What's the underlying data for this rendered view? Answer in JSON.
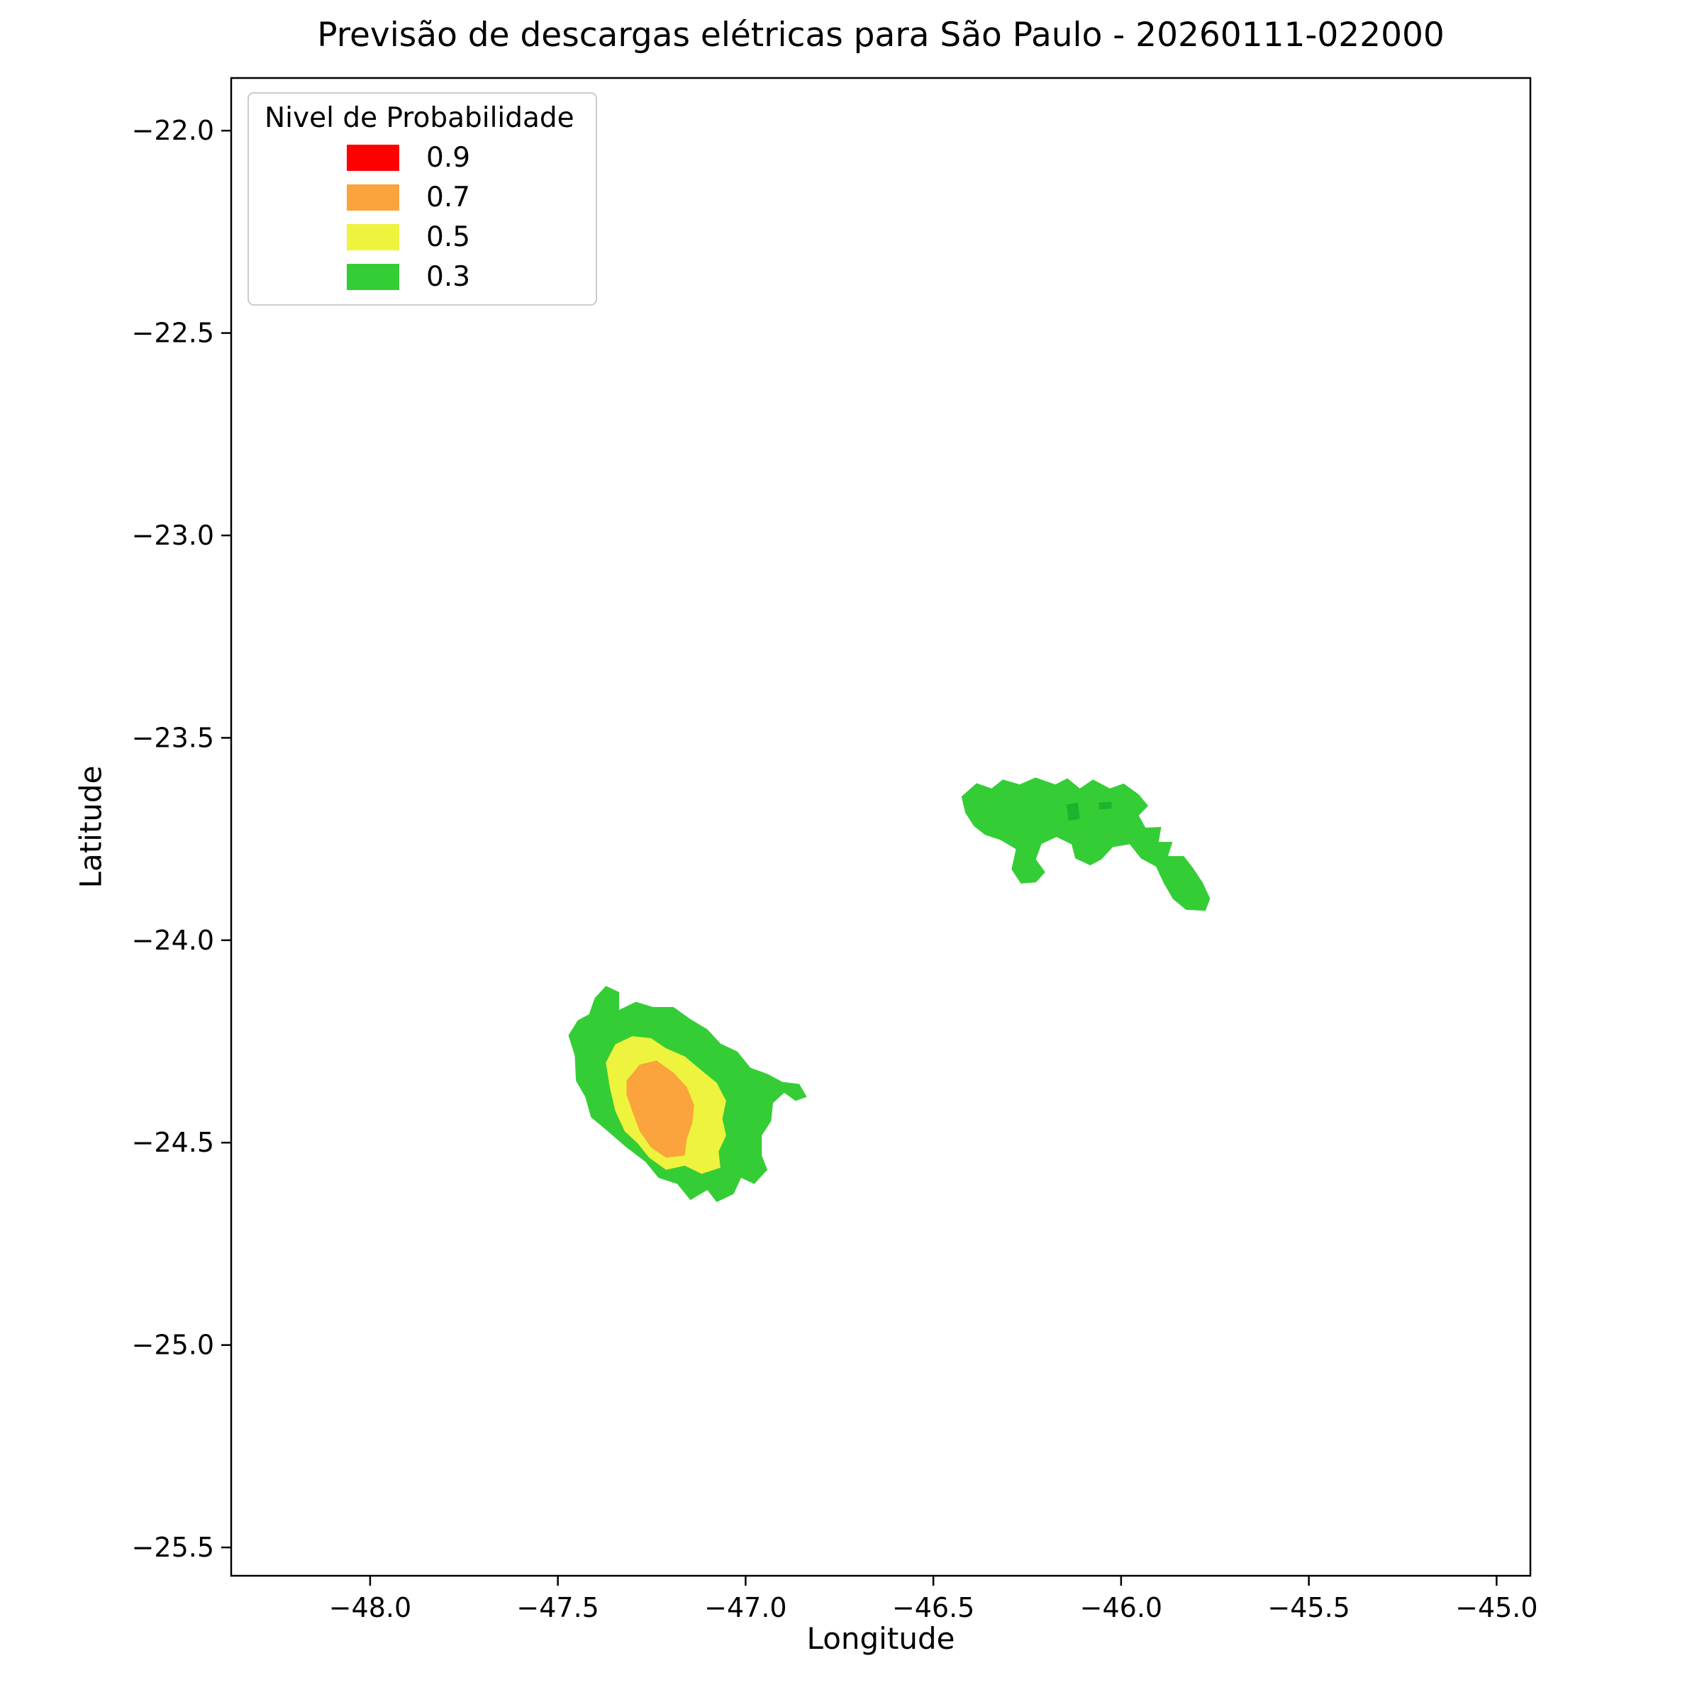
{
  "chart_data": {
    "type": "contour-map",
    "title": "Previsão de descargas elétricas para São Paulo - 20260111-022000",
    "xlabel": "Longitude",
    "ylabel": "Latitude",
    "xlim": [
      -48.37,
      -44.91
    ],
    "ylim": [
      -25.57,
      -21.87
    ],
    "x_ticks": [
      -48.0,
      -47.5,
      -47.0,
      -46.5,
      -46.0,
      -45.5,
      -45.0
    ],
    "y_ticks": [
      -22.0,
      -22.5,
      -23.0,
      -23.5,
      -24.0,
      -24.5,
      -25.0,
      -25.5
    ],
    "grid": false,
    "legend": {
      "title": "Nivel de Probabilidade",
      "position": "upper-left",
      "entries": [
        {
          "label": "0.9",
          "color": "#fe0000"
        },
        {
          "label": "0.7",
          "color": "#fba33c"
        },
        {
          "label": "0.5",
          "color": "#eef33e"
        },
        {
          "label": "0.3",
          "color": "#35cd35"
        }
      ]
    },
    "regions": [
      {
        "name": "green-northeast",
        "level": 0.3,
        "color": "#35cd35",
        "points": [
          [
            -46.415,
            -23.685
          ],
          [
            -46.425,
            -23.645
          ],
          [
            -46.385,
            -23.612
          ],
          [
            -46.345,
            -23.625
          ],
          [
            -46.315,
            -23.603
          ],
          [
            -46.27,
            -23.615
          ],
          [
            -46.228,
            -23.598
          ],
          [
            -46.175,
            -23.615
          ],
          [
            -46.143,
            -23.6
          ],
          [
            -46.11,
            -23.625
          ],
          [
            -46.075,
            -23.603
          ],
          [
            -46.03,
            -23.625
          ],
          [
            -45.993,
            -23.613
          ],
          [
            -45.953,
            -23.64
          ],
          [
            -45.928,
            -23.668
          ],
          [
            -45.953,
            -23.692
          ],
          [
            -45.935,
            -23.722
          ],
          [
            -45.893,
            -23.72
          ],
          [
            -45.9,
            -23.757
          ],
          [
            -45.863,
            -23.757
          ],
          [
            -45.875,
            -23.792
          ],
          [
            -45.833,
            -23.792
          ],
          [
            -45.808,
            -23.822
          ],
          [
            -45.783,
            -23.857
          ],
          [
            -45.763,
            -23.897
          ],
          [
            -45.775,
            -23.927
          ],
          [
            -45.827,
            -23.925
          ],
          [
            -45.862,
            -23.898
          ],
          [
            -45.887,
            -23.858
          ],
          [
            -45.907,
            -23.818
          ],
          [
            -45.947,
            -23.798
          ],
          [
            -45.977,
            -23.763
          ],
          [
            -46.022,
            -23.77
          ],
          [
            -46.052,
            -23.8
          ],
          [
            -46.082,
            -23.815
          ],
          [
            -46.122,
            -23.798
          ],
          [
            -46.132,
            -23.763
          ],
          [
            -46.172,
            -23.745
          ],
          [
            -46.212,
            -23.762
          ],
          [
            -46.227,
            -23.8
          ],
          [
            -46.202,
            -23.832
          ],
          [
            -46.227,
            -23.857
          ],
          [
            -46.267,
            -23.86
          ],
          [
            -46.292,
            -23.825
          ],
          [
            -46.28,
            -23.775
          ],
          [
            -46.322,
            -23.752
          ],
          [
            -46.362,
            -23.74
          ],
          [
            -46.392,
            -23.718
          ]
        ]
      },
      {
        "name": "green-speck-1",
        "level": 0.3,
        "color": "#1db32d",
        "points": [
          [
            -46.145,
            -23.665
          ],
          [
            -46.115,
            -23.66
          ],
          [
            -46.11,
            -23.7
          ],
          [
            -46.14,
            -23.705
          ]
        ]
      },
      {
        "name": "green-speck-2",
        "level": 0.3,
        "color": "#1db32d",
        "points": [
          [
            -46.06,
            -23.66
          ],
          [
            -46.025,
            -23.658
          ],
          [
            -46.025,
            -23.675
          ],
          [
            -46.058,
            -23.677
          ]
        ]
      },
      {
        "name": "green-southwest",
        "level": 0.3,
        "color": "#35cd35",
        "points": [
          [
            -47.455,
            -24.285
          ],
          [
            -47.472,
            -24.235
          ],
          [
            -47.447,
            -24.198
          ],
          [
            -47.417,
            -24.183
          ],
          [
            -47.402,
            -24.143
          ],
          [
            -47.372,
            -24.113
          ],
          [
            -47.337,
            -24.128
          ],
          [
            -47.337,
            -24.172
          ],
          [
            -47.292,
            -24.152
          ],
          [
            -47.247,
            -24.165
          ],
          [
            -47.192,
            -24.165
          ],
          [
            -47.147,
            -24.195
          ],
          [
            -47.102,
            -24.22
          ],
          [
            -47.067,
            -24.255
          ],
          [
            -47.022,
            -24.275
          ],
          [
            -46.987,
            -24.315
          ],
          [
            -46.942,
            -24.33
          ],
          [
            -46.902,
            -24.35
          ],
          [
            -46.857,
            -24.355
          ],
          [
            -46.837,
            -24.387
          ],
          [
            -46.867,
            -24.397
          ],
          [
            -46.897,
            -24.377
          ],
          [
            -46.927,
            -24.402
          ],
          [
            -46.932,
            -24.447
          ],
          [
            -46.957,
            -24.482
          ],
          [
            -46.957,
            -24.532
          ],
          [
            -46.942,
            -24.567
          ],
          [
            -46.977,
            -24.602
          ],
          [
            -47.012,
            -24.587
          ],
          [
            -47.032,
            -24.627
          ],
          [
            -47.077,
            -24.647
          ],
          [
            -47.102,
            -24.617
          ],
          [
            -47.147,
            -24.642
          ],
          [
            -47.182,
            -24.602
          ],
          [
            -47.232,
            -24.587
          ],
          [
            -47.267,
            -24.547
          ],
          [
            -47.317,
            -24.512
          ],
          [
            -47.367,
            -24.472
          ],
          [
            -47.412,
            -24.437
          ],
          [
            -47.427,
            -24.387
          ],
          [
            -47.452,
            -24.347
          ]
        ]
      },
      {
        "name": "yellow-southwest",
        "level": 0.5,
        "color": "#eef33e",
        "points": [
          [
            -47.372,
            -24.302
          ],
          [
            -47.347,
            -24.257
          ],
          [
            -47.302,
            -24.237
          ],
          [
            -47.252,
            -24.242
          ],
          [
            -47.212,
            -24.267
          ],
          [
            -47.162,
            -24.287
          ],
          [
            -47.117,
            -24.322
          ],
          [
            -47.077,
            -24.352
          ],
          [
            -47.052,
            -24.397
          ],
          [
            -47.062,
            -24.442
          ],
          [
            -47.052,
            -24.482
          ],
          [
            -47.072,
            -24.522
          ],
          [
            -47.067,
            -24.562
          ],
          [
            -47.117,
            -24.577
          ],
          [
            -47.162,
            -24.557
          ],
          [
            -47.212,
            -24.567
          ],
          [
            -47.257,
            -24.537
          ],
          [
            -47.287,
            -24.502
          ],
          [
            -47.322,
            -24.472
          ],
          [
            -47.347,
            -24.422
          ],
          [
            -47.362,
            -24.362
          ]
        ]
      },
      {
        "name": "orange-southwest",
        "level": 0.7,
        "color": "#fba33c",
        "points": [
          [
            -47.317,
            -24.347
          ],
          [
            -47.282,
            -24.307
          ],
          [
            -47.237,
            -24.297
          ],
          [
            -47.192,
            -24.327
          ],
          [
            -47.157,
            -24.362
          ],
          [
            -47.137,
            -24.407
          ],
          [
            -47.142,
            -24.452
          ],
          [
            -47.157,
            -24.492
          ],
          [
            -47.162,
            -24.532
          ],
          [
            -47.212,
            -24.537
          ],
          [
            -47.252,
            -24.512
          ],
          [
            -47.282,
            -24.472
          ],
          [
            -47.302,
            -24.422
          ],
          [
            -47.317,
            -24.382
          ]
        ]
      }
    ]
  }
}
